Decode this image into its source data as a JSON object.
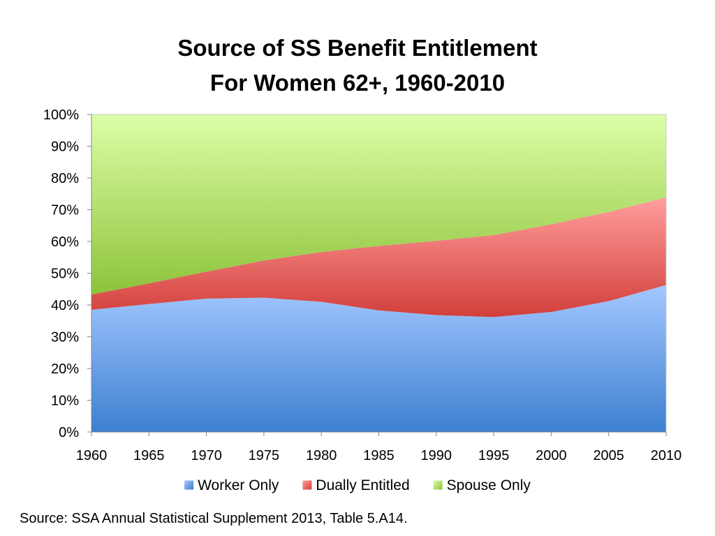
{
  "chart_data": {
    "type": "area",
    "stacked": true,
    "title": [
      "Source of SS Benefit Entitlement",
      "For Women 62+, 1960-2010"
    ],
    "x": [
      1960,
      1965,
      1970,
      1975,
      1980,
      1985,
      1990,
      1995,
      2000,
      2005,
      2010
    ],
    "x_tick_labels": [
      "1960",
      "1965",
      "1970",
      "1975",
      "1980",
      "1985",
      "1990",
      "1995",
      "2000",
      "2005",
      "2010"
    ],
    "ylim": [
      0,
      100
    ],
    "y_tick_labels": [
      "0%",
      "10%",
      "20%",
      "30%",
      "40%",
      "50%",
      "60%",
      "70%",
      "80%",
      "90%",
      "100%"
    ],
    "legend_position": "bottom",
    "series": [
      {
        "name": "Worker Only",
        "color_top": "#a4c8ff",
        "color_bottom": "#3d7fd0",
        "values": [
          38.5,
          40.3,
          42.0,
          42.3,
          41.0,
          38.3,
          36.8,
          36.2,
          37.8,
          41.2,
          46.3
        ]
      },
      {
        "name": "Dually Entitled",
        "color_top": "#ff9e9c",
        "color_bottom": "#d23f3b",
        "values": [
          4.8,
          6.5,
          8.5,
          11.7,
          15.7,
          20.3,
          23.4,
          25.8,
          27.6,
          28.1,
          27.6
        ]
      },
      {
        "name": "Spouse Only",
        "color_top": "#dcffa8",
        "color_bottom": "#8dc33a",
        "values": [
          56.7,
          53.2,
          49.5,
          46.0,
          43.3,
          41.4,
          39.8,
          38.0,
          34.6,
          30.7,
          26.1
        ]
      }
    ]
  },
  "source_note": "Source: SSA Annual Statistical Supplement 2013, Table 5.A14."
}
